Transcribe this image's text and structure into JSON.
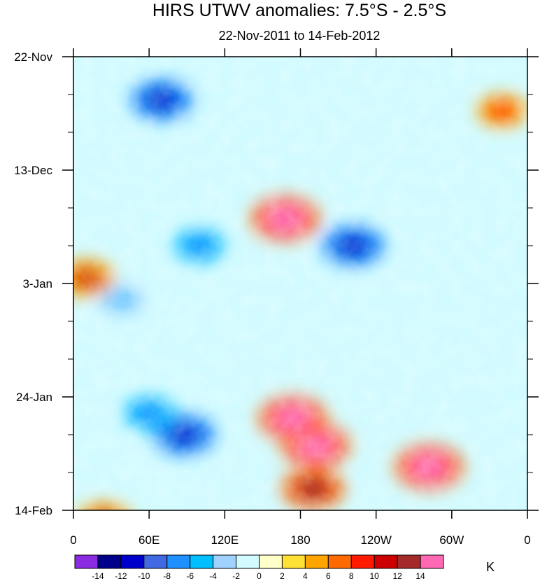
{
  "chart_data": {
    "type": "heatmap",
    "title": "HIRS UTWV anomalies: 7.5°S - 2.5°S",
    "subtitle": "22-Nov-2011 to 14-Feb-2012",
    "x_ticks": [
      "0",
      "60E",
      "120E",
      "180",
      "120W",
      "60W",
      "0"
    ],
    "x_range": [
      0,
      360
    ],
    "y_ticks": [
      "22-Nov",
      "13-Dec",
      "3-Jan",
      "24-Jan",
      "14-Feb"
    ],
    "y_range_dates": [
      "22-Nov-2011",
      "14-Feb-2012"
    ],
    "colorbar": {
      "unit": "K",
      "levels": [
        -14,
        -12,
        -10,
        -8,
        -6,
        -4,
        -2,
        0,
        2,
        4,
        6,
        8,
        10,
        12,
        14
      ],
      "labels": [
        "-14",
        "-12",
        "-10",
        "-8",
        "-6",
        "-4",
        "-2",
        "0",
        "2",
        "4",
        "6",
        "8",
        "10",
        "12",
        "14"
      ],
      "colors": [
        "#8a2be2",
        "#00008b",
        "#0000cd",
        "#4169e1",
        "#1e90ff",
        "#00bfff",
        "#a0d2ff",
        "#d1fbff",
        "#ffffc8",
        "#ffe035",
        "#ffa500",
        "#ff6a00",
        "#ff1a00",
        "#cc0000",
        "#a52a2a",
        "#ff69b4"
      ]
    },
    "features": [
      {
        "lon": 70,
        "day": 8,
        "value": -12
      },
      {
        "lon": 168,
        "day": 30,
        "value": 14
      },
      {
        "lon": 222,
        "day": 35,
        "value": -12
      },
      {
        "lon": 192,
        "day": 72,
        "value": 14
      },
      {
        "lon": 174,
        "day": 67,
        "value": 14
      },
      {
        "lon": 190,
        "day": 80,
        "value": 12
      },
      {
        "lon": 88,
        "day": 70,
        "value": -12
      },
      {
        "lon": 282,
        "day": 76,
        "value": 14
      },
      {
        "lon": 100,
        "day": 35,
        "value": -8
      },
      {
        "lon": 38,
        "day": 45,
        "value": -6
      },
      {
        "lon": 10,
        "day": 41,
        "value": 10
      },
      {
        "lon": 340,
        "day": 10,
        "value": 8
      },
      {
        "lon": 60,
        "day": 66,
        "value": -8
      },
      {
        "lon": 24,
        "day": 86,
        "value": 10
      }
    ]
  }
}
